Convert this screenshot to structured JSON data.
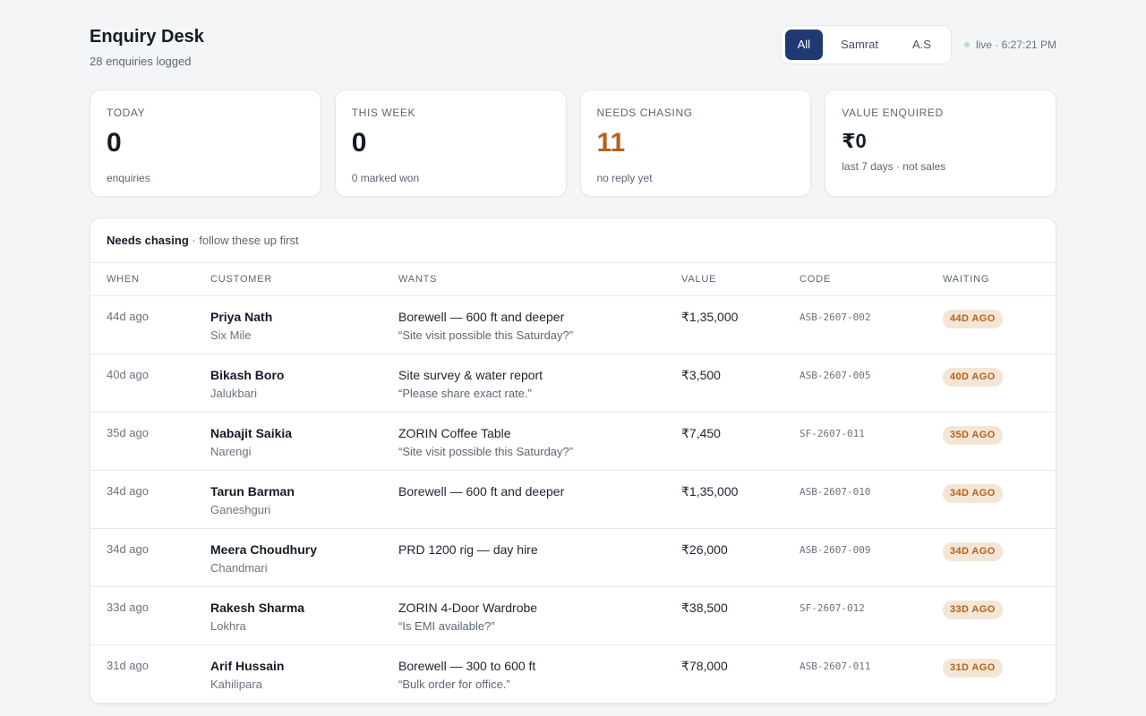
{
  "header": {
    "title": "Enquiry Desk",
    "subtitle": "28 enquiries logged",
    "filters": [
      "All",
      "Samrat",
      "A.S"
    ],
    "active_filter": "All",
    "live_text": "live · 6:27:21 PM",
    "live_dot_color": "#b9d8cb"
  },
  "stats": [
    {
      "label": "TODAY",
      "value": "0",
      "note": "enquiries"
    },
    {
      "label": "THIS WEEK",
      "value": "0",
      "note": "0 marked won"
    },
    {
      "label": "NEEDS CHASING",
      "value": "11",
      "note": "no reply yet",
      "accent": "#b5611c"
    },
    {
      "label": "VALUE ENQUIRED",
      "value": "₹0",
      "note": "last 7 days · not sales"
    }
  ],
  "chasing": {
    "title": "Needs chasing",
    "subtitle": " · follow these up first",
    "columns": [
      "WHEN",
      "CUSTOMER",
      "WANTS",
      "VALUE",
      "CODE",
      "WAITING"
    ],
    "rows": [
      {
        "when": "44d ago",
        "name": "Priya Nath",
        "area": "Six Mile",
        "wants": "Borewell — 600 ft and deeper",
        "quote": "“Site visit possible this Saturday?”",
        "value": "₹1,35,000",
        "code": "ASB-2607-002",
        "waiting": "44D AGO"
      },
      {
        "when": "40d ago",
        "name": "Bikash Boro",
        "area": "Jalukbari",
        "wants": "Site survey & water report",
        "quote": "“Please share exact rate.”",
        "value": "₹3,500",
        "code": "ASB-2607-005",
        "waiting": "40D AGO"
      },
      {
        "when": "35d ago",
        "name": "Nabajit Saikia",
        "area": "Narengi",
        "wants": "ZORIN Coffee Table",
        "quote": "“Site visit possible this Saturday?”",
        "value": "₹7,450",
        "code": "SF-2607-011",
        "waiting": "35D AGO"
      },
      {
        "when": "34d ago",
        "name": "Tarun Barman",
        "area": "Ganeshguri",
        "wants": "Borewell — 600 ft and deeper",
        "quote": "",
        "value": "₹1,35,000",
        "code": "ASB-2607-010",
        "waiting": "34D AGO"
      },
      {
        "when": "34d ago",
        "name": "Meera Choudhury",
        "area": "Chandmari",
        "wants": "PRD 1200 rig — day hire",
        "quote": "",
        "value": "₹26,000",
        "code": "ASB-2607-009",
        "waiting": "34D AGO"
      },
      {
        "when": "33d ago",
        "name": "Rakesh Sharma",
        "area": "Lokhra",
        "wants": "ZORIN 4-Door Wardrobe",
        "quote": "“Is EMI available?”",
        "value": "₹38,500",
        "code": "SF-2607-012",
        "waiting": "33D AGO"
      },
      {
        "when": "31d ago",
        "name": "Arif Hussain",
        "area": "Kahilipara",
        "wants": "Borewell — 300 to 600 ft",
        "quote": "“Bulk order for office.”",
        "value": "₹78,000",
        "code": "ASB-2607-011",
        "waiting": "31D AGO"
      }
    ]
  }
}
